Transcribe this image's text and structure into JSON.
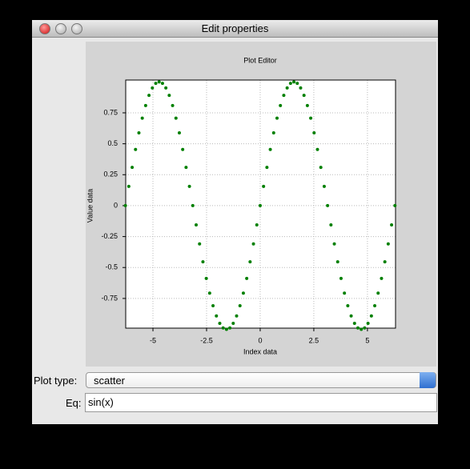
{
  "window": {
    "title": "Edit properties"
  },
  "chart_data": {
    "type": "scatter",
    "title": "Plot Editor",
    "x_label": "Index data",
    "y_label": "Value data",
    "color": "#008000",
    "grid": true,
    "xlim": [
      -6.27,
      6.31
    ],
    "ylim": [
      -0.99,
      1.015
    ],
    "xticks": [
      -5,
      -2.5,
      0,
      2.5,
      5
    ],
    "yticks": [
      -0.75,
      -0.5,
      -0.25,
      0,
      0.25,
      0.5,
      0.75
    ],
    "x": [
      -6.283,
      -6.126,
      -5.969,
      -5.812,
      -5.655,
      -5.498,
      -5.341,
      -5.184,
      -5.027,
      -4.869,
      -4.712,
      -4.555,
      -4.398,
      -4.241,
      -4.084,
      -3.927,
      -3.77,
      -3.613,
      -3.456,
      -3.299,
      -3.142,
      -2.985,
      -2.827,
      -2.67,
      -2.513,
      -2.356,
      -2.199,
      -2.042,
      -1.885,
      -1.728,
      -1.571,
      -1.414,
      -1.257,
      -1.1,
      -0.942,
      -0.785,
      -0.628,
      -0.471,
      -0.314,
      -0.157,
      0,
      0.157,
      0.314,
      0.471,
      0.628,
      0.785,
      0.942,
      1.1,
      1.257,
      1.414,
      1.571,
      1.728,
      1.885,
      2.042,
      2.199,
      2.356,
      2.513,
      2.67,
      2.827,
      2.985,
      3.142,
      3.299,
      3.456,
      3.613,
      3.77,
      3.927,
      4.084,
      4.241,
      4.398,
      4.555,
      4.712,
      4.869,
      5.027,
      5.184,
      5.341,
      5.498,
      5.655,
      5.812,
      5.969,
      6.126,
      6.283
    ],
    "values": [
      0,
      0.156,
      0.309,
      0.454,
      0.588,
      0.707,
      0.809,
      0.891,
      0.951,
      0.988,
      1,
      0.988,
      0.951,
      0.891,
      0.809,
      0.707,
      0.588,
      0.454,
      0.309,
      0.156,
      0,
      -0.156,
      -0.309,
      -0.454,
      -0.588,
      -0.707,
      -0.809,
      -0.891,
      -0.951,
      -0.988,
      -1,
      -0.988,
      -0.951,
      -0.891,
      -0.809,
      -0.707,
      -0.588,
      -0.454,
      -0.309,
      -0.156,
      0,
      0.156,
      0.309,
      0.454,
      0.588,
      0.707,
      0.809,
      0.891,
      0.951,
      0.988,
      1,
      0.988,
      0.951,
      0.891,
      0.809,
      0.707,
      0.588,
      0.454,
      0.309,
      0.156,
      0,
      -0.156,
      -0.309,
      -0.454,
      -0.588,
      -0.707,
      -0.809,
      -0.891,
      -0.951,
      -0.988,
      -1,
      -0.988,
      -0.951,
      -0.891,
      -0.809,
      -0.707,
      -0.588,
      -0.454,
      -0.309,
      -0.156,
      0
    ]
  },
  "form": {
    "plot_type_label": "Plot type:",
    "plot_type": "scatter",
    "eq_label": "Eq:",
    "eq": "sin(x)"
  }
}
